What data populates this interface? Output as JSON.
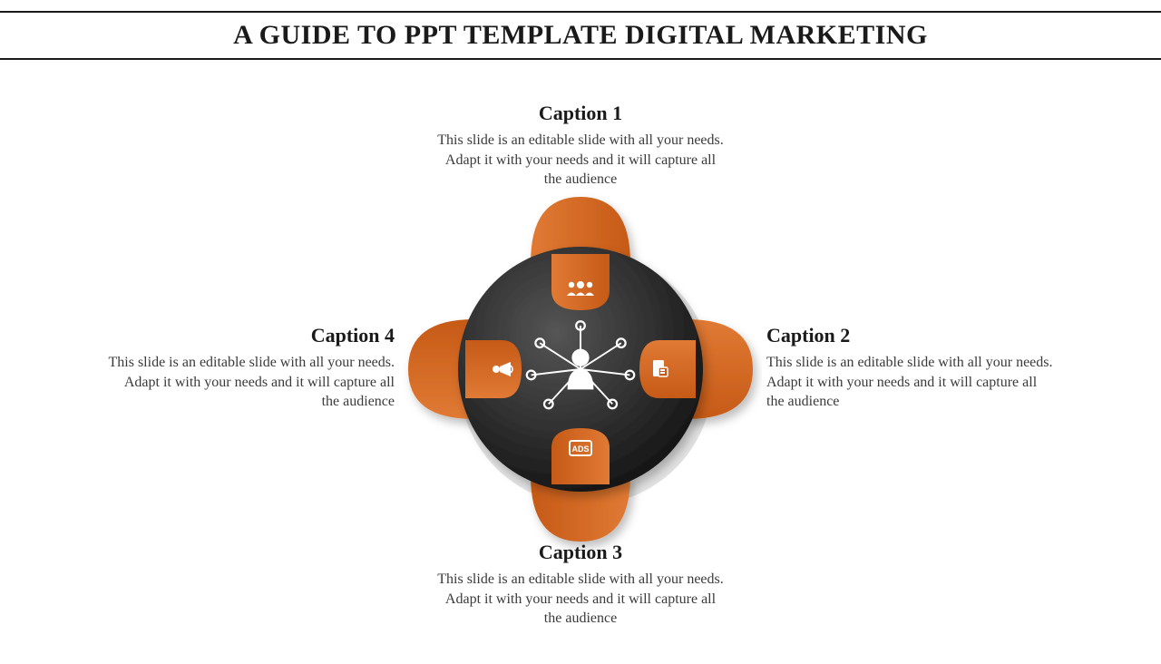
{
  "title": {
    "text": "A GUIDE TO PPT TEMPLATE DIGITAL MARKETING",
    "fontsize": 30,
    "color": "#1a1a1a"
  },
  "diagram": {
    "type": "infographic",
    "hub_radius": 135,
    "hub_gradient_inner": "#555555",
    "hub_gradient_outer": "#141414",
    "hub_shadow": "#cfcfcf",
    "lobe_color": "#c65a17",
    "lobe_highlight": "#e07a34",
    "lobe_shadow": "#6e3210",
    "icon_color": "#ffffff",
    "background_color": "#ffffff",
    "caption_title_fontsize": 22,
    "caption_body_fontsize": 16,
    "captions": [
      {
        "pos": "top",
        "title": "Caption 1",
        "body": "This slide is an editable slide with all your needs. Adapt it with your needs and it will capture all the audience",
        "icon": "people-icon"
      },
      {
        "pos": "right",
        "title": "Caption 2",
        "body": "This slide is an editable slide with all your needs. Adapt it with your needs and it will capture all the audience",
        "icon": "document-icon"
      },
      {
        "pos": "bottom",
        "title": "Caption 3",
        "body": "This slide is an editable slide with all your needs. Adapt it with your needs and it will capture all the audience",
        "icon": "ads-icon"
      },
      {
        "pos": "left",
        "title": "Caption 4",
        "body": "This slide is an editable slide with all your needs. Adapt it with your needs and it will capture all the audience",
        "icon": "megaphone-icon"
      }
    ],
    "center_icon": "network-person-icon"
  }
}
